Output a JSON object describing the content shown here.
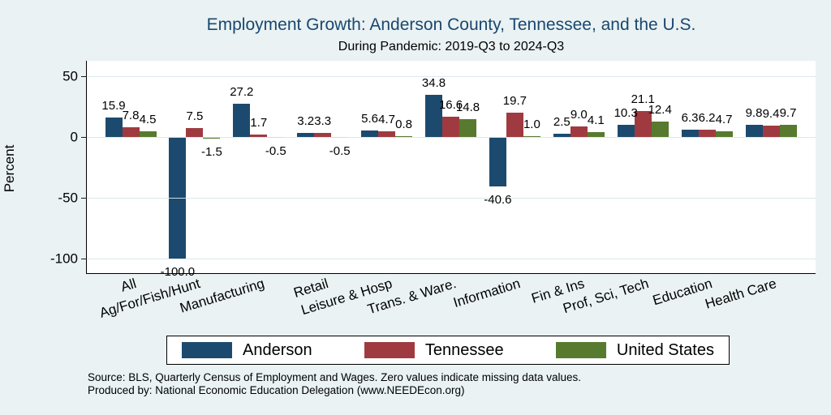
{
  "title": "Employment Growth: Anderson County, Tennessee, and the U.S.",
  "subtitle": "During Pandemic: 2019-Q3 to 2024-Q3",
  "ylabel": "Percent",
  "notes": {
    "source": "Source: BLS, Quarterly Census of Employment and Wages. Zero values indicate missing data values.",
    "producer": "Produced by: National Economic Education Delegation (www.NEEDEcon.org)"
  },
  "colors": {
    "background": "#eaf2f3",
    "plot_background": "#ffffff",
    "gridline": "#d8e6e9",
    "axis": "#000000",
    "title_text": "#1a476f",
    "anderson": "#1c4a6e",
    "tennessee": "#9f3b40",
    "united_states": "#587a2e"
  },
  "chart_data": {
    "type": "bar",
    "title": "Employment Growth: Anderson County, Tennessee, and the U.S.",
    "subtitle": "During Pandemic: 2019-Q3 to 2024-Q3",
    "xlabel": "",
    "ylabel": "Percent",
    "categories": [
      "All",
      "Ag/For/Fish/Hunt",
      "Manufacturing",
      "Retail",
      "Leisure & Hosp",
      "Trans. & Ware.",
      "Information",
      "Fin & Ins",
      "Prof, Sci, Tech",
      "Education",
      "Health Care"
    ],
    "series": [
      {
        "name": "Anderson",
        "color": "#1c4a6e",
        "values": [
          15.9,
          -100.0,
          27.2,
          3.2,
          5.6,
          34.8,
          -40.6,
          2.5,
          10.3,
          6.3,
          9.8
        ]
      },
      {
        "name": "Tennessee",
        "color": "#9f3b40",
        "values": [
          7.8,
          7.5,
          1.7,
          3.3,
          4.7,
          16.6,
          19.7,
          9.0,
          21.1,
          6.2,
          9.4
        ]
      },
      {
        "name": "United States",
        "color": "#587a2e",
        "values": [
          4.5,
          -1.5,
          -0.5,
          -0.5,
          0.8,
          14.8,
          1.0,
          4.1,
          12.4,
          4.7,
          9.7
        ]
      }
    ],
    "yticks": [
      50,
      0,
      -50,
      -100
    ],
    "ylim": [
      -112,
      63
    ],
    "grid": true,
    "legend_position": "bottom",
    "value_labels": true,
    "value_label_format": "one_decimal"
  }
}
